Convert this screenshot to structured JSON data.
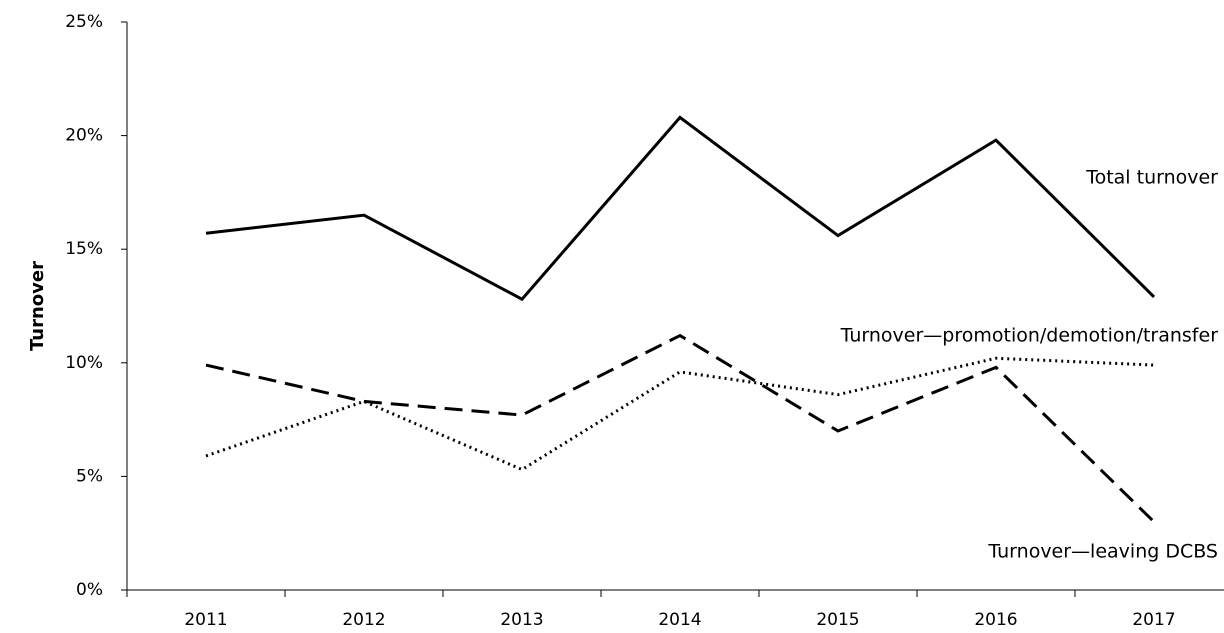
{
  "chart_data": {
    "type": "line",
    "y_label": "Turnover",
    "categories": [
      "2011",
      "2012",
      "2013",
      "2014",
      "2015",
      "2016",
      "2017"
    ],
    "series": [
      {
        "name": "Total turnover",
        "color": "#000000",
        "dash": "solid",
        "values": [
          15.7,
          16.5,
          12.8,
          20.8,
          15.6,
          19.8,
          12.9
        ]
      },
      {
        "name": "Turnover—leaving DCBS",
        "color": "#000000",
        "dash": "dashed",
        "values": [
          9.9,
          8.3,
          7.7,
          11.2,
          7.0,
          9.8,
          3.0
        ]
      },
      {
        "name": "Turnover—promotion/demotion/transfer",
        "color": "#000000",
        "dash": "dotted",
        "values": [
          5.9,
          8.3,
          5.3,
          9.6,
          8.6,
          10.2,
          9.9
        ]
      }
    ],
    "ylim": [
      0,
      25
    ],
    "yticks": [
      {
        "value": 0,
        "label": "0%"
      },
      {
        "value": 5,
        "label": "5%"
      },
      {
        "value": 10,
        "label": "10%"
      },
      {
        "value": 15,
        "label": "15%"
      },
      {
        "value": 20,
        "label": "20%"
      },
      {
        "value": 25,
        "label": "25%"
      }
    ],
    "grid": false
  }
}
